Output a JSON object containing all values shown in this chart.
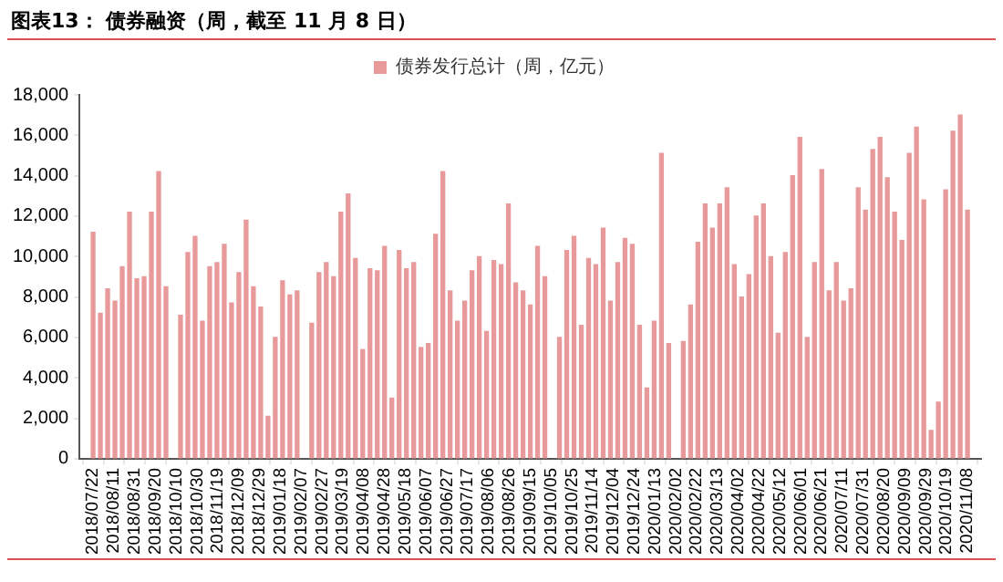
{
  "chart_data": {
    "type": "bar",
    "title": "图表13： 债券融资（周，截至 11 月 8 日）",
    "x": [
      "2018-07-22",
      "2018-07-29",
      "2018-08-05",
      "2018-08-12",
      "2018-08-19",
      "2018-08-26",
      "2018-09-02",
      "2018-09-09",
      "2018-09-16",
      "2018-09-23",
      "2018-09-30",
      "2018-10-07",
      "2018-10-14",
      "2018-10-21",
      "2018-10-28",
      "2018-11-04",
      "2018-11-11",
      "2018-11-18",
      "2018-11-25",
      "2018-12-02",
      "2018-12-09",
      "2018-12-16",
      "2018-12-23",
      "2018-12-30",
      "2019-01-06",
      "2019-01-13",
      "2019-01-20",
      "2019-01-27",
      "2019-02-03",
      "2019-02-10",
      "2019-02-17",
      "2019-02-24",
      "2019-03-03",
      "2019-03-10",
      "2019-03-17",
      "2019-03-24",
      "2019-03-31",
      "2019-04-07",
      "2019-04-14",
      "2019-04-21",
      "2019-04-28",
      "2019-05-05",
      "2019-05-12",
      "2019-05-19",
      "2019-05-26",
      "2019-06-02",
      "2019-06-09",
      "2019-06-16",
      "2019-06-23",
      "2019-06-30",
      "2019-07-07",
      "2019-07-14",
      "2019-07-21",
      "2019-07-28",
      "2019-08-04",
      "2019-08-11",
      "2019-08-18",
      "2019-08-25",
      "2019-09-01",
      "2019-09-08",
      "2019-09-15",
      "2019-09-22",
      "2019-09-29",
      "2019-10-06",
      "2019-10-13",
      "2019-10-20",
      "2019-10-27",
      "2019-11-03",
      "2019-11-10",
      "2019-11-17",
      "2019-11-24",
      "2019-12-01",
      "2019-12-08",
      "2019-12-15",
      "2019-12-22",
      "2019-12-29",
      "2020-01-05",
      "2020-01-12",
      "2020-01-19",
      "2020-01-26",
      "2020-02-02",
      "2020-02-09",
      "2020-02-16",
      "2020-02-23",
      "2020-03-01",
      "2020-03-08",
      "2020-03-15",
      "2020-03-22",
      "2020-03-29",
      "2020-04-05",
      "2020-04-12",
      "2020-04-19",
      "2020-04-26",
      "2020-05-03",
      "2020-05-10",
      "2020-05-17",
      "2020-05-24",
      "2020-05-31",
      "2020-06-07",
      "2020-06-14",
      "2020-06-21",
      "2020-06-28",
      "2020-07-05",
      "2020-07-12",
      "2020-07-19",
      "2020-07-26",
      "2020-08-02",
      "2020-08-09",
      "2020-08-16",
      "2020-08-23",
      "2020-08-30",
      "2020-09-06",
      "2020-09-13",
      "2020-09-20",
      "2020-09-27",
      "2020-10-04",
      "2020-10-11",
      "2020-10-18",
      "2020-10-25",
      "2020-11-01",
      "2020-11-08"
    ],
    "series": [
      {
        "name": "债券发行总计（周，亿元）",
        "color": "#e89a9a",
        "values": [
          11200,
          7200,
          8400,
          7800,
          9500,
          12200,
          8900,
          9000,
          12200,
          14200,
          8500,
          null,
          7100,
          10200,
          11000,
          6800,
          9500,
          9700,
          10600,
          7700,
          9200,
          11800,
          8500,
          7500,
          2100,
          6000,
          8800,
          8100,
          8300,
          null,
          6700,
          9200,
          9700,
          9000,
          12200,
          13100,
          9900,
          5400,
          9400,
          9300,
          10500,
          3000,
          10300,
          9400,
          9700,
          5500,
          5700,
          11100,
          14200,
          8300,
          6800,
          7800,
          9300,
          10000,
          6300,
          9800,
          9600,
          12600,
          8700,
          8300,
          7600,
          10500,
          9000,
          null,
          6000,
          10300,
          11000,
          6600,
          9900,
          9600,
          11400,
          7800,
          9700,
          10900,
          10600,
          6600,
          3500,
          6800,
          15100,
          5700,
          null,
          5800,
          7600,
          10700,
          12600,
          11400,
          12600,
          13400,
          9600,
          8000,
          9100,
          12000,
          12600,
          10000,
          6200,
          10200,
          14000,
          15900,
          6000,
          9700,
          14300,
          8300,
          9700,
          7800,
          8400,
          13400,
          12300,
          15300,
          15900,
          13900,
          12200,
          10800,
          15100,
          16400,
          12800,
          1400,
          2800,
          13300,
          16200,
          17000,
          12300
        ]
      }
    ],
    "xlim": [
      "2018-07-19",
      "2020-11-11"
    ],
    "xticks": [
      {
        "value": "2018-07-22",
        "label": "2018/07/22"
      },
      {
        "value": "2018-08-11",
        "label": "2018/08/11"
      },
      {
        "value": "2018-08-31",
        "label": "2018/08/31"
      },
      {
        "value": "2018-09-20",
        "label": "2018/09/20"
      },
      {
        "value": "2018-10-10",
        "label": "2018/10/10"
      },
      {
        "value": "2018-10-30",
        "label": "2018/10/30"
      },
      {
        "value": "2018-11-19",
        "label": "2018/11/19"
      },
      {
        "value": "2018-12-09",
        "label": "2018/12/09"
      },
      {
        "value": "2018-12-29",
        "label": "2018/12/29"
      },
      {
        "value": "2019-01-18",
        "label": "2019/01/18"
      },
      {
        "value": "2019-02-07",
        "label": "2019/02/07"
      },
      {
        "value": "2019-02-27",
        "label": "2019/02/27"
      },
      {
        "value": "2019-03-19",
        "label": "2019/03/19"
      },
      {
        "value": "2019-04-08",
        "label": "2019/04/08"
      },
      {
        "value": "2019-04-28",
        "label": "2019/04/28"
      },
      {
        "value": "2019-05-18",
        "label": "2019/05/18"
      },
      {
        "value": "2019-06-07",
        "label": "2019/06/07"
      },
      {
        "value": "2019-06-27",
        "label": "2019/06/27"
      },
      {
        "value": "2019-07-17",
        "label": "2019/07/17"
      },
      {
        "value": "2019-08-06",
        "label": "2019/08/06"
      },
      {
        "value": "2019-08-26",
        "label": "2019/08/26"
      },
      {
        "value": "2019-09-15",
        "label": "2019/09/15"
      },
      {
        "value": "2019-10-05",
        "label": "2019/10/05"
      },
      {
        "value": "2019-10-25",
        "label": "2019/10/25"
      },
      {
        "value": "2019-11-14",
        "label": "2019/11/14"
      },
      {
        "value": "2019-12-04",
        "label": "2019/12/04"
      },
      {
        "value": "2019-12-24",
        "label": "2019/12/24"
      },
      {
        "value": "2020-01-13",
        "label": "2020/01/13"
      },
      {
        "value": "2020-02-02",
        "label": "2020/02/02"
      },
      {
        "value": "2020-02-22",
        "label": "2020/02/22"
      },
      {
        "value": "2020-03-13",
        "label": "2020/03/13"
      },
      {
        "value": "2020-04-02",
        "label": "2020/04/02"
      },
      {
        "value": "2020-04-22",
        "label": "2020/04/22"
      },
      {
        "value": "2020-05-12",
        "label": "2020/05/12"
      },
      {
        "value": "2020-06-01",
        "label": "2020/06/01"
      },
      {
        "value": "2020-06-21",
        "label": "2020/06/21"
      },
      {
        "value": "2020-07-11",
        "label": "2020/07/11"
      },
      {
        "value": "2020-07-31",
        "label": "2020/07/31"
      },
      {
        "value": "2020-08-20",
        "label": "2020/08/20"
      },
      {
        "value": "2020-09-09",
        "label": "2020/09/09"
      },
      {
        "value": "2020-09-29",
        "label": "2020/09/29"
      },
      {
        "value": "2020-10-19",
        "label": "2020/10/19"
      },
      {
        "value": "2020-11-08",
        "label": "2020/11/08"
      }
    ],
    "ylim": [
      0,
      18000
    ],
    "yticks": [
      0,
      {
        "value": 2000,
        "label": "2,000"
      },
      {
        "value": 4000,
        "label": "4,000"
      },
      {
        "value": 6000,
        "label": "6,000"
      },
      {
        "value": 8000,
        "label": "8,000"
      },
      {
        "value": 10000,
        "label": "10,000"
      },
      {
        "value": 12000,
        "label": "12,000"
      },
      {
        "value": 14000,
        "label": "14,000"
      },
      {
        "value": 16000,
        "label": "16,000"
      },
      {
        "value": 18000,
        "label": "18,000"
      }
    ],
    "grid": false,
    "legend": "top"
  }
}
